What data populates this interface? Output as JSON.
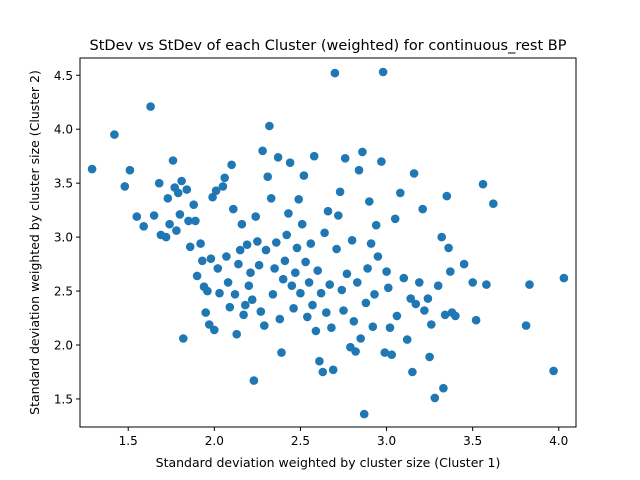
{
  "chart_data": {
    "type": "scatter",
    "title": "StDev vs StDev of each Cluster (weighted) for continuous_rest BP",
    "xlabel": "Standard deviation weighted by cluster size (Cluster 1)",
    "ylabel": "Standard deviation weighted by cluster size (Cluster 2)",
    "xlim": [
      1.22,
      4.1
    ],
    "ylim": [
      1.24,
      4.66
    ],
    "xticks": [
      "1.5",
      "2.0",
      "2.5",
      "3.0",
      "3.5",
      "4.0"
    ],
    "yticks": [
      "1.5",
      "2.0",
      "2.5",
      "3.0",
      "3.5",
      "4.0",
      "4.5"
    ],
    "grid": false,
    "color": "#1f77b4",
    "points": [
      [
        1.29,
        3.63
      ],
      [
        1.42,
        3.95
      ],
      [
        1.48,
        3.47
      ],
      [
        1.51,
        3.62
      ],
      [
        1.55,
        3.19
      ],
      [
        1.59,
        3.1
      ],
      [
        1.63,
        4.21
      ],
      [
        1.65,
        3.2
      ],
      [
        1.68,
        3.5
      ],
      [
        1.69,
        3.02
      ],
      [
        1.72,
        3.0
      ],
      [
        1.73,
        3.36
      ],
      [
        1.74,
        3.12
      ],
      [
        1.76,
        3.71
      ],
      [
        1.77,
        3.46
      ],
      [
        1.78,
        3.06
      ],
      [
        1.79,
        3.41
      ],
      [
        1.8,
        3.21
      ],
      [
        1.81,
        3.52
      ],
      [
        1.82,
        2.06
      ],
      [
        1.84,
        3.44
      ],
      [
        1.85,
        3.15
      ],
      [
        1.86,
        2.91
      ],
      [
        1.88,
        3.3
      ],
      [
        1.89,
        3.15
      ],
      [
        1.9,
        2.64
      ],
      [
        1.92,
        2.94
      ],
      [
        1.93,
        2.78
      ],
      [
        1.94,
        2.54
      ],
      [
        1.95,
        2.3
      ],
      [
        1.96,
        2.5
      ],
      [
        1.97,
        2.19
      ],
      [
        1.98,
        2.8
      ],
      [
        1.99,
        3.37
      ],
      [
        2.0,
        2.14
      ],
      [
        2.01,
        3.43
      ],
      [
        2.02,
        2.71
      ],
      [
        2.03,
        2.48
      ],
      [
        2.05,
        3.47
      ],
      [
        2.06,
        3.55
      ],
      [
        2.07,
        2.82
      ],
      [
        2.08,
        2.58
      ],
      [
        2.09,
        2.35
      ],
      [
        2.1,
        3.67
      ],
      [
        2.11,
        3.26
      ],
      [
        2.12,
        2.47
      ],
      [
        2.13,
        2.1
      ],
      [
        2.14,
        2.75
      ],
      [
        2.15,
        2.88
      ],
      [
        2.16,
        3.12
      ],
      [
        2.17,
        2.28
      ],
      [
        2.18,
        2.37
      ],
      [
        2.19,
        2.93
      ],
      [
        2.2,
        2.55
      ],
      [
        2.21,
        2.67
      ],
      [
        2.22,
        2.42
      ],
      [
        2.23,
        1.67
      ],
      [
        2.24,
        3.19
      ],
      [
        2.25,
        2.96
      ],
      [
        2.26,
        2.74
      ],
      [
        2.27,
        2.31
      ],
      [
        2.28,
        3.8
      ],
      [
        2.29,
        2.18
      ],
      [
        2.3,
        2.88
      ],
      [
        2.31,
        3.56
      ],
      [
        2.32,
        4.03
      ],
      [
        2.33,
        3.36
      ],
      [
        2.34,
        2.47
      ],
      [
        2.35,
        2.71
      ],
      [
        2.36,
        2.95
      ],
      [
        2.37,
        3.74
      ],
      [
        2.38,
        2.24
      ],
      [
        2.39,
        1.93
      ],
      [
        2.4,
        2.61
      ],
      [
        2.41,
        2.78
      ],
      [
        2.42,
        3.02
      ],
      [
        2.43,
        3.22
      ],
      [
        2.44,
        3.69
      ],
      [
        2.45,
        2.55
      ],
      [
        2.46,
        2.34
      ],
      [
        2.47,
        2.67
      ],
      [
        2.48,
        2.9
      ],
      [
        2.49,
        3.35
      ],
      [
        2.5,
        2.48
      ],
      [
        2.51,
        3.12
      ],
      [
        2.52,
        3.57
      ],
      [
        2.53,
        2.77
      ],
      [
        2.54,
        2.26
      ],
      [
        2.55,
        2.58
      ],
      [
        2.56,
        2.94
      ],
      [
        2.57,
        2.37
      ],
      [
        2.58,
        3.75
      ],
      [
        2.59,
        2.13
      ],
      [
        2.6,
        2.69
      ],
      [
        2.61,
        1.85
      ],
      [
        2.62,
        2.48
      ],
      [
        2.63,
        1.75
      ],
      [
        2.64,
        3.04
      ],
      [
        2.65,
        2.3
      ],
      [
        2.66,
        3.24
      ],
      [
        2.67,
        2.56
      ],
      [
        2.68,
        2.16
      ],
      [
        2.69,
        1.77
      ],
      [
        2.7,
        4.52
      ],
      [
        2.71,
        2.89
      ],
      [
        2.72,
        3.2
      ],
      [
        2.73,
        3.42
      ],
      [
        2.74,
        2.51
      ],
      [
        2.75,
        2.32
      ],
      [
        2.76,
        3.73
      ],
      [
        2.77,
        2.66
      ],
      [
        2.79,
        1.98
      ],
      [
        2.8,
        2.97
      ],
      [
        2.81,
        2.22
      ],
      [
        2.82,
        1.94
      ],
      [
        2.83,
        2.58
      ],
      [
        2.84,
        3.62
      ],
      [
        2.85,
        2.06
      ],
      [
        2.86,
        3.79
      ],
      [
        2.87,
        1.36
      ],
      [
        2.88,
        2.39
      ],
      [
        2.89,
        2.71
      ],
      [
        2.9,
        3.33
      ],
      [
        2.91,
        2.94
      ],
      [
        2.92,
        2.17
      ],
      [
        2.93,
        2.47
      ],
      [
        2.94,
        3.11
      ],
      [
        2.95,
        2.82
      ],
      [
        2.97,
        3.7
      ],
      [
        2.98,
        4.53
      ],
      [
        2.99,
        1.93
      ],
      [
        3.0,
        2.68
      ],
      [
        3.01,
        2.53
      ],
      [
        3.02,
        2.16
      ],
      [
        3.03,
        1.91
      ],
      [
        3.05,
        3.17
      ],
      [
        3.06,
        2.27
      ],
      [
        3.08,
        3.41
      ],
      [
        3.1,
        2.62
      ],
      [
        3.12,
        2.05
      ],
      [
        3.14,
        2.43
      ],
      [
        3.15,
        1.75
      ],
      [
        3.16,
        3.59
      ],
      [
        3.17,
        2.38
      ],
      [
        3.19,
        2.58
      ],
      [
        3.21,
        3.26
      ],
      [
        3.22,
        2.32
      ],
      [
        3.24,
        2.43
      ],
      [
        3.25,
        1.89
      ],
      [
        3.26,
        2.19
      ],
      [
        3.28,
        1.51
      ],
      [
        3.3,
        2.55
      ],
      [
        3.32,
        3.0
      ],
      [
        3.33,
        1.6
      ],
      [
        3.34,
        2.28
      ],
      [
        3.35,
        3.38
      ],
      [
        3.36,
        2.9
      ],
      [
        3.37,
        2.68
      ],
      [
        3.38,
        2.3
      ],
      [
        3.4,
        2.27
      ],
      [
        3.45,
        2.75
      ],
      [
        3.5,
        2.58
      ],
      [
        3.52,
        2.23
      ],
      [
        3.56,
        3.49
      ],
      [
        3.58,
        2.56
      ],
      [
        3.62,
        3.31
      ],
      [
        3.81,
        2.18
      ],
      [
        3.83,
        2.56
      ],
      [
        3.97,
        1.76
      ],
      [
        4.03,
        2.62
      ]
    ]
  }
}
